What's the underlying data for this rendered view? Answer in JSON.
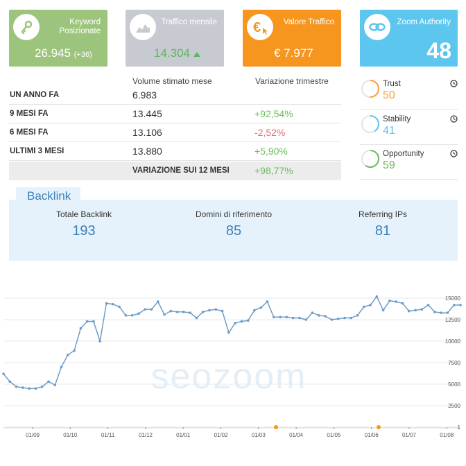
{
  "cards": {
    "keyword": {
      "title_line1": "Keyword",
      "title_line2": "Posizionate",
      "value": "26.945",
      "delta": "(+36)",
      "icon": "key-icon",
      "color": "#9dc47c"
    },
    "traffic": {
      "title": "Traffico mensile",
      "value": "14.304",
      "trend": "up",
      "icon": "mountain-chart-icon",
      "color": "#c8cad1"
    },
    "value": {
      "title": "Valore Traffico",
      "value": "€ 7.977",
      "icon": "euro-cursor-icon",
      "color": "#f7961e"
    },
    "authority": {
      "title": "Zoom Authority",
      "value": "48",
      "icon": "zoom-link-icon",
      "color": "#5cc6ee"
    }
  },
  "table": {
    "col_volume": "Volume stimato mese",
    "col_variation": "Variazione trimestre",
    "rows": [
      {
        "label": "UN ANNO FA",
        "volume": "6.983",
        "variation": ""
      },
      {
        "label": "9 MESI FA",
        "volume": "13.445",
        "variation": "+92,54%"
      },
      {
        "label": "6 MESI FA",
        "volume": "13.106",
        "variation": "-2,52%"
      },
      {
        "label": "ULTIMI 3 MESI",
        "volume": "13.880",
        "variation": "+5,90%"
      }
    ],
    "summary_label": "VARIAZIONE SUI 12 MESI",
    "summary_value": "+98,77%"
  },
  "metrics": [
    {
      "name": "Trust",
      "value": "50",
      "color": "#f7a23a"
    },
    {
      "name": "Stability",
      "value": "41",
      "color": "#5cc6ee"
    },
    {
      "name": "Opportunity",
      "value": "59",
      "color": "#6dbb5e"
    }
  ],
  "backlink": {
    "tab_label": "Backlink",
    "stats": [
      {
        "label": "Totale Backlink",
        "value": "193"
      },
      {
        "label": "Domini di riferimento",
        "value": "85"
      },
      {
        "label": "Referring IPs",
        "value": "81"
      }
    ]
  },
  "watermark": "seozoom",
  "chart_data": {
    "type": "line",
    "x_tick_labels": [
      "01/09",
      "01/10",
      "01/11",
      "01/12",
      "01/01",
      "01/02",
      "01/03",
      "01/04",
      "01/05",
      "01/06",
      "01/07",
      "01/08"
    ],
    "y_tick_labels": [
      "15000",
      "12500",
      "10000",
      "7500",
      "5000",
      "2500",
      "1"
    ],
    "ylim": [
      1,
      15000
    ],
    "series": [
      {
        "color": "#6f9cc8",
        "values": [
          6200,
          5300,
          4700,
          4600,
          4500,
          4500,
          4700,
          5300,
          4900,
          7000,
          8400,
          8900,
          11500,
          12300,
          12300,
          10000,
          14400,
          14300,
          14000,
          13000,
          13000,
          13200,
          13700,
          13700,
          14600,
          13100,
          13500,
          13400,
          13400,
          13300,
          12700,
          13400,
          13600,
          13700,
          13500,
          11000,
          12100,
          12300,
          12400,
          13600,
          13900,
          14600,
          12800,
          12800,
          12800,
          12700,
          12700,
          12500,
          13300,
          13000,
          12900,
          12500,
          12600,
          12700,
          12700,
          13000,
          14000,
          14200,
          15200,
          13600,
          14700,
          14600,
          14400,
          13500,
          13600,
          13700,
          14200,
          13400,
          13300,
          13300,
          14200,
          14200
        ]
      }
    ],
    "markers": [
      {
        "label": "event",
        "color": "#f7961e"
      },
      {
        "label": "event",
        "color": "#f7961e"
      }
    ]
  }
}
